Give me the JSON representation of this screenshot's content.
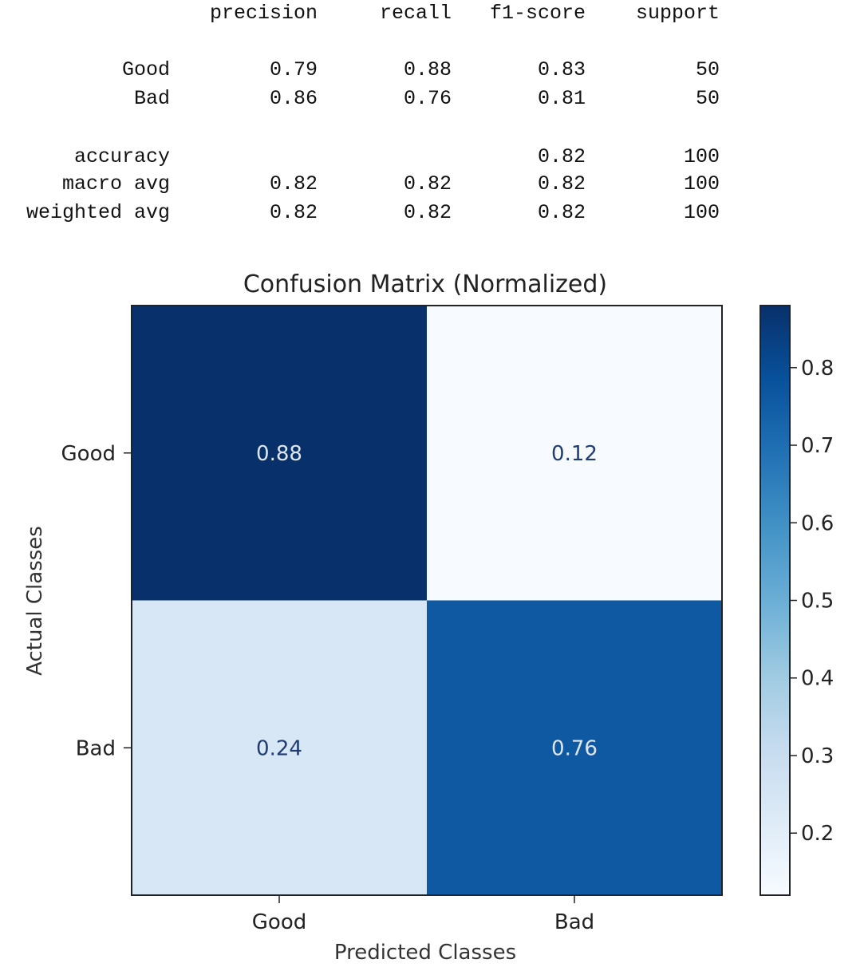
{
  "classification_report": {
    "headers": [
      "precision",
      "recall",
      "f1-score",
      "support"
    ],
    "rows": [
      {
        "label": "Good",
        "precision": "0.79",
        "recall": "0.88",
        "f1": "0.83",
        "support": "50"
      },
      {
        "label": "Bad",
        "precision": "0.86",
        "recall": "0.76",
        "f1": "0.81",
        "support": "50"
      }
    ],
    "summary": [
      {
        "label": "accuracy",
        "precision": "",
        "recall": "",
        "f1": "0.82",
        "support": "100"
      },
      {
        "label": "macro avg",
        "precision": "0.82",
        "recall": "0.82",
        "f1": "0.82",
        "support": "100"
      },
      {
        "label": "weighted avg",
        "precision": "0.82",
        "recall": "0.82",
        "f1": "0.82",
        "support": "100"
      }
    ]
  },
  "chart_data": {
    "type": "heatmap",
    "title": "Confusion Matrix (Normalized)",
    "xlabel": "Predicted Classes",
    "ylabel": "Actual Classes",
    "x_categories": [
      "Good",
      "Bad"
    ],
    "y_categories": [
      "Good",
      "Bad"
    ],
    "values": [
      [
        0.88,
        0.12
      ],
      [
        0.24,
        0.76
      ]
    ],
    "value_labels": [
      [
        "0.88",
        "0.12"
      ],
      [
        "0.24",
        "0.76"
      ]
    ],
    "colormap": "Blues",
    "colorbar": {
      "range": [
        0.12,
        0.88
      ],
      "ticks": [
        0.2,
        0.3,
        0.4,
        0.5,
        0.6,
        0.7,
        0.8
      ],
      "tick_labels": [
        "0.2",
        "0.3",
        "0.4",
        "0.5",
        "0.6",
        "0.7",
        "0.8"
      ]
    },
    "colors": {
      "dark_text": "#1f3d73",
      "light_text": "#dfe6f0"
    }
  }
}
